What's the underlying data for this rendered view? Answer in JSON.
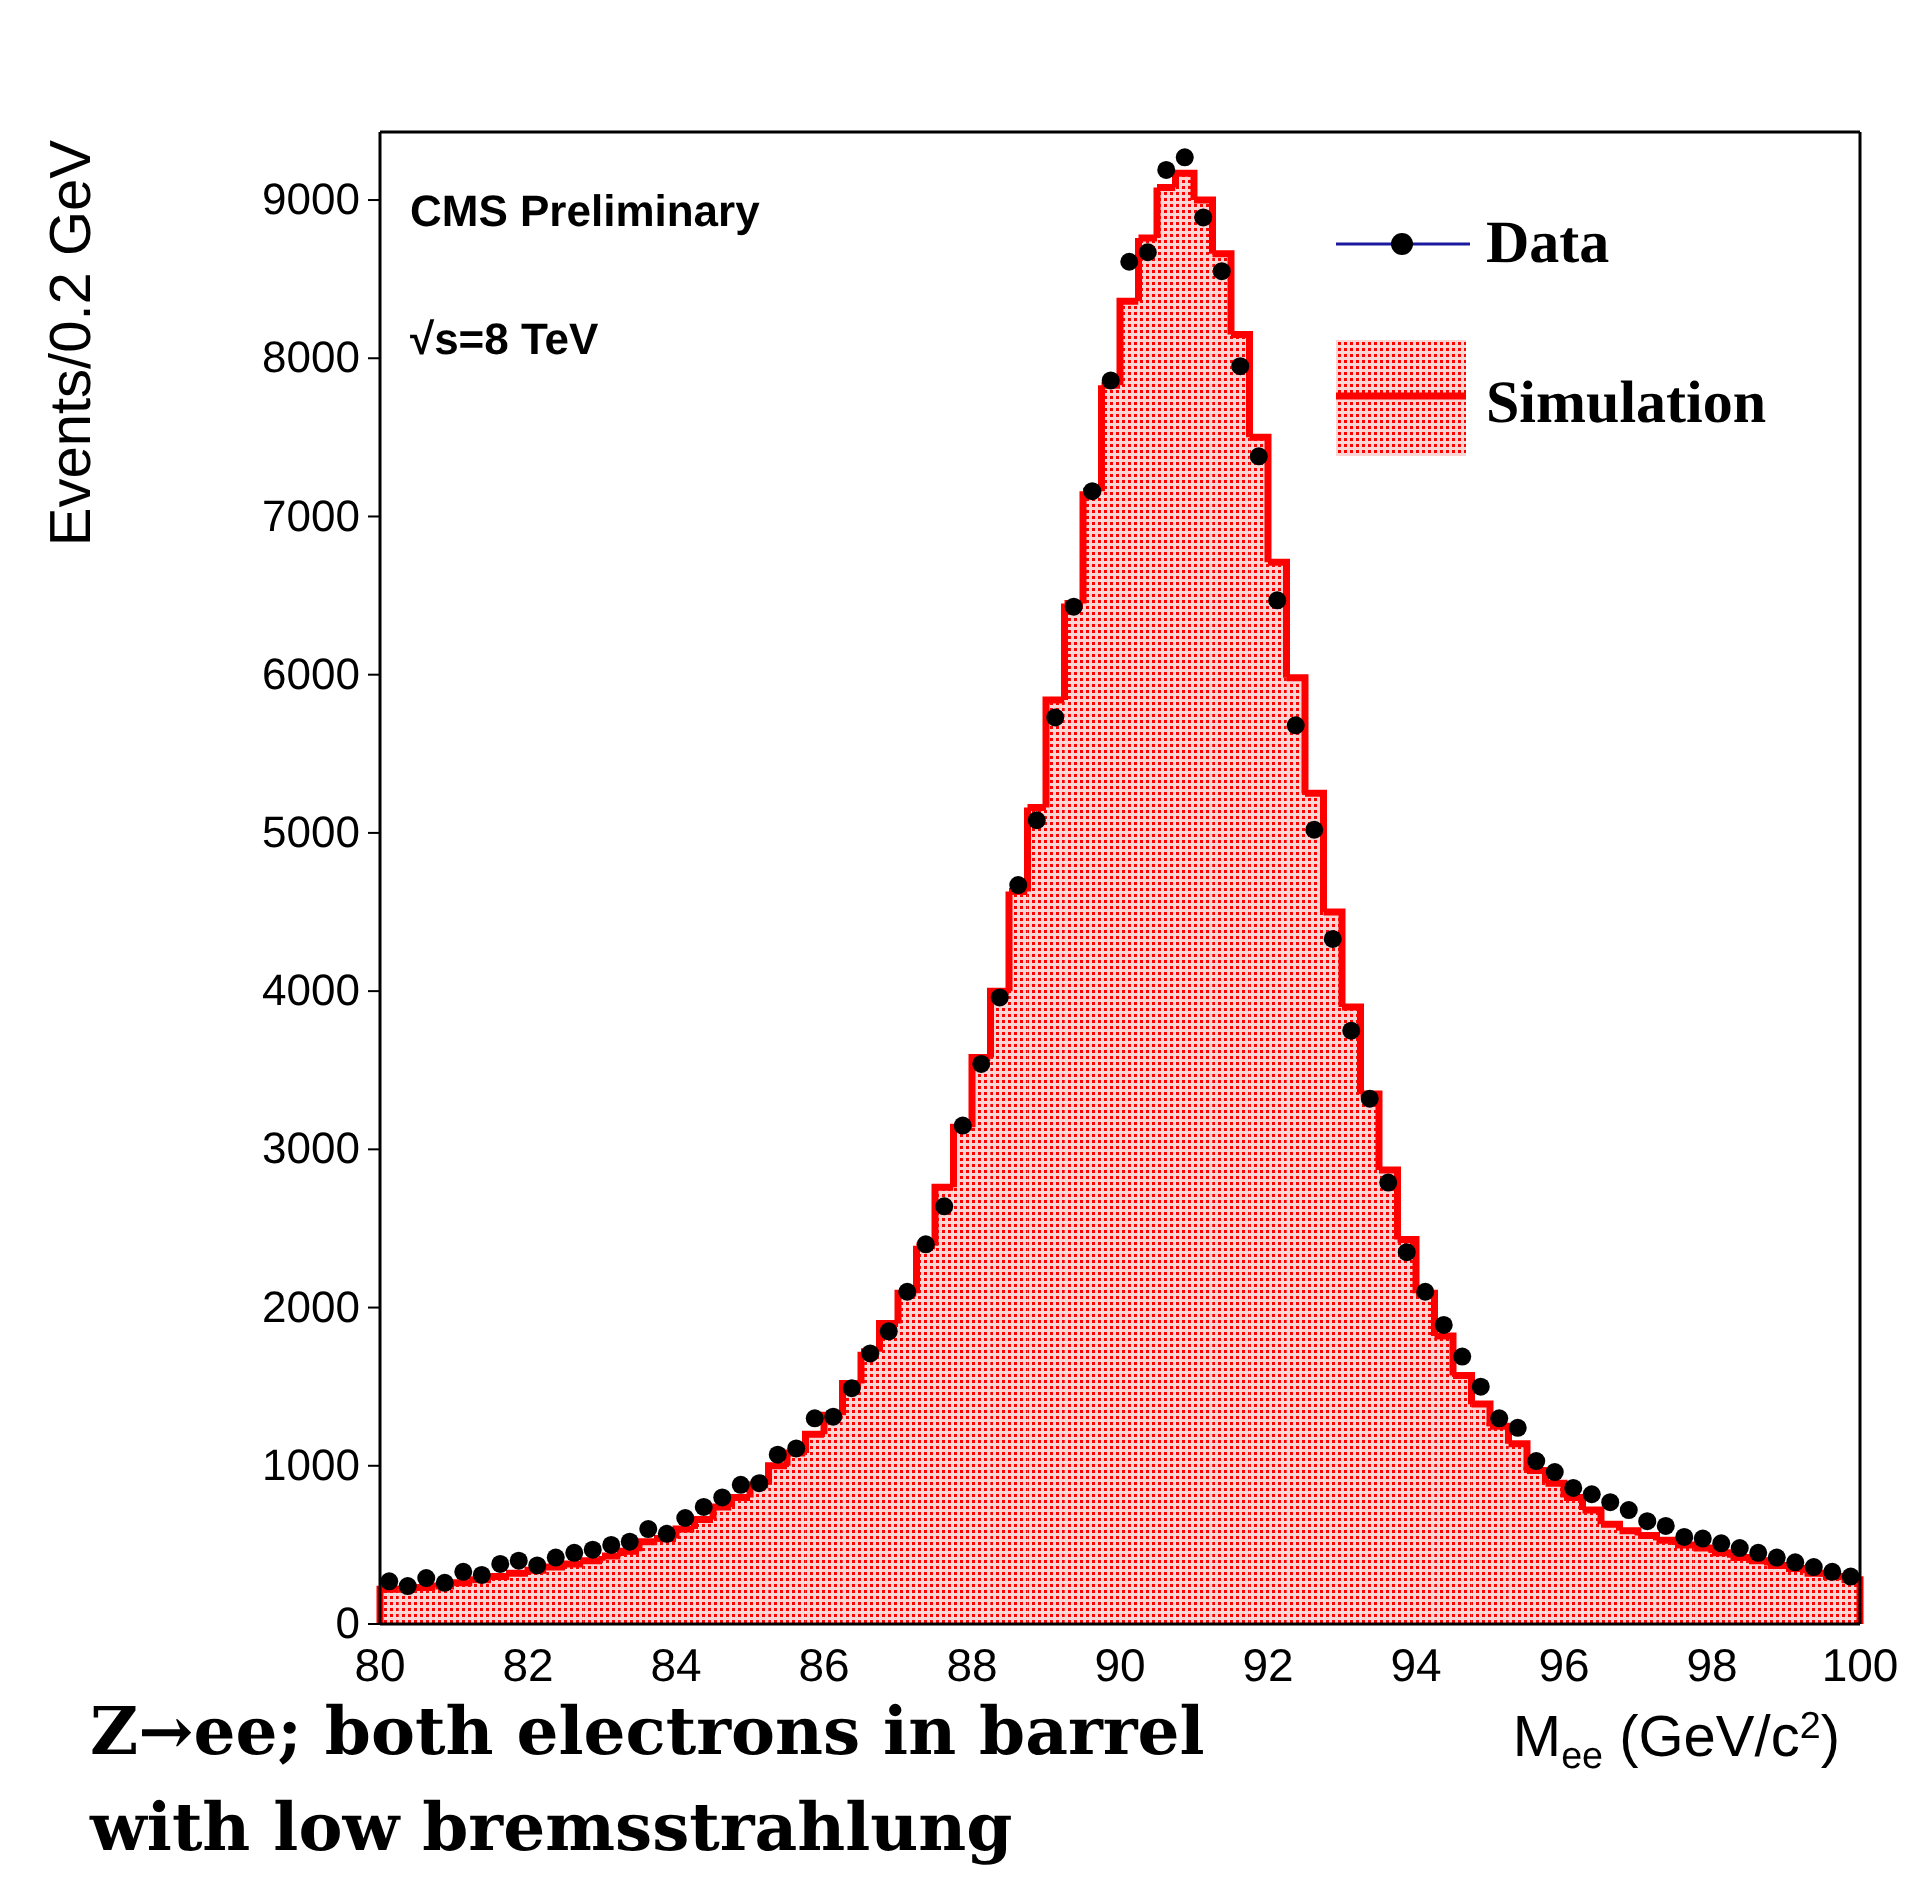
{
  "chart_data": {
    "type": "histogram",
    "xlabel": "M$_{ee}$ (GeV/c$^{2}$)",
    "ylabel": "Events/0.2 GeV",
    "annotations": [
      "CMS Preliminary",
      "√s=8 TeV",
      "Z→ee; both electrons in barrel",
      "with low bremsstrahlung"
    ],
    "bins": [
      80,
      80.25,
      80.5,
      80.75,
      81,
      81.25,
      81.5,
      81.75,
      82,
      82.25,
      82.5,
      82.75,
      83,
      83.25,
      83.5,
      83.75,
      84,
      84.25,
      84.5,
      84.75,
      85,
      85.25,
      85.5,
      85.75,
      86,
      86.25,
      86.5,
      86.75,
      87,
      87.25,
      87.5,
      87.75,
      88,
      88.25,
      88.5,
      88.75,
      89,
      89.25,
      89.5,
      89.75,
      90,
      90.25,
      90.5,
      90.75,
      91,
      91.25,
      91.5,
      91.75,
      92,
      92.25,
      92.5,
      92.75,
      93,
      93.25,
      93.5,
      93.75,
      94,
      94.25,
      94.5,
      94.75,
      95,
      95.25,
      95.5,
      95.75,
      96,
      96.25,
      96.5,
      96.75,
      97,
      97.25,
      97.5,
      97.75,
      98,
      98.25,
      98.5,
      98.75,
      99,
      99.25,
      99.5,
      99.75,
      100
    ],
    "series": [
      {
        "name": "Simulation",
        "type": "histogram",
        "color": "#ff0000",
        "values": [
          220,
          220,
          230,
          240,
          260,
          280,
          300,
          320,
          340,
          360,
          380,
          400,
          430,
          460,
          520,
          540,
          600,
          660,
          740,
          800,
          880,
          1000,
          1080,
          1200,
          1320,
          1520,
          1720,
          1900,
          2090,
          2390,
          2760,
          3140,
          3580,
          4000,
          4630,
          5160,
          5840,
          6450,
          7160,
          7830,
          8360,
          8760,
          9080,
          9170,
          9000,
          8660,
          8150,
          7500,
          6710,
          5980,
          5250,
          4500,
          3900,
          3350,
          2870,
          2430,
          2090,
          1820,
          1570,
          1390,
          1250,
          1140,
          970,
          890,
          800,
          720,
          630,
          590,
          560,
          530,
          500,
          480,
          450,
          420,
          400,
          370,
          350,
          320,
          300,
          280
        ]
      },
      {
        "name": "Data",
        "type": "scatter",
        "color": "#000000",
        "marker": "circle",
        "x": [
          80.125,
          80.375,
          80.625,
          80.875,
          81.125,
          81.375,
          81.625,
          81.875,
          82.125,
          82.375,
          82.625,
          82.875,
          83.125,
          83.375,
          83.625,
          83.875,
          84.125,
          84.375,
          84.625,
          84.875,
          85.125,
          85.375,
          85.625,
          85.875,
          86.125,
          86.375,
          86.625,
          86.875,
          87.125,
          87.375,
          87.625,
          87.875,
          88.125,
          88.375,
          88.625,
          88.875,
          89.125,
          89.375,
          89.625,
          89.875,
          90.125,
          90.375,
          90.625,
          90.875,
          91.125,
          91.375,
          91.625,
          91.875,
          92.125,
          92.375,
          92.625,
          92.875,
          93.125,
          93.375,
          93.625,
          93.875,
          94.125,
          94.375,
          94.625,
          94.875,
          95.125,
          95.375,
          95.625,
          95.875,
          96.125,
          96.375,
          96.625,
          96.875,
          97.125,
          97.375,
          97.625,
          97.875,
          98.125,
          98.375,
          98.625,
          98.875,
          99.125,
          99.375,
          99.625,
          99.875
        ],
        "values": [
          270,
          240,
          290,
          260,
          330,
          310,
          380,
          400,
          370,
          420,
          450,
          470,
          500,
          520,
          600,
          570,
          670,
          740,
          800,
          880,
          890,
          1070,
          1110,
          1300,
          1310,
          1490,
          1710,
          1850,
          2100,
          2400,
          2640,
          3150,
          3540,
          3960,
          4670,
          5080,
          5730,
          6430,
          7160,
          7860,
          8610,
          8670,
          9190,
          9270,
          8890,
          8550,
          7950,
          7380,
          6470,
          5680,
          5020,
          4330,
          3750,
          3320,
          2790,
          2350,
          2100,
          1890,
          1690,
          1500,
          1300,
          1240,
          1030,
          960,
          860,
          820,
          770,
          720,
          650,
          620,
          550,
          540,
          510,
          480,
          450,
          420,
          390,
          360,
          330,
          300
        ]
      }
    ],
    "xlim": [
      80,
      100
    ],
    "ylim": [
      0,
      9430
    ],
    "xticks": [
      80,
      82,
      84,
      86,
      88,
      90,
      92,
      94,
      96,
      98,
      100
    ],
    "yticks": [
      0,
      1000,
      2000,
      3000,
      4000,
      5000,
      6000,
      7000,
      8000,
      9000
    ],
    "legend": "top right"
  }
}
